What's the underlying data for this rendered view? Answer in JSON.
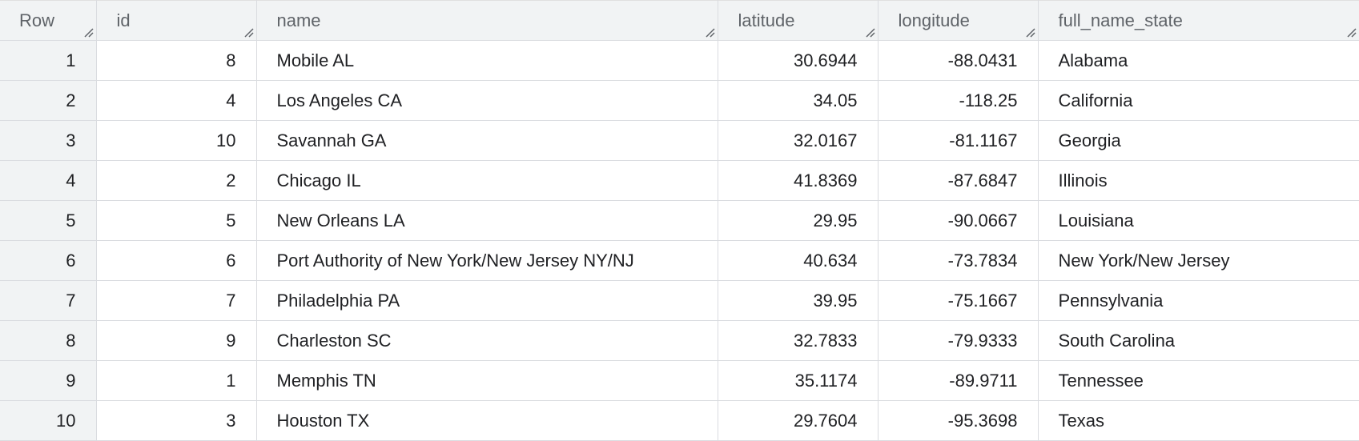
{
  "table": {
    "columns": [
      {
        "key": "row",
        "label": "Row"
      },
      {
        "key": "id",
        "label": "id"
      },
      {
        "key": "name",
        "label": "name"
      },
      {
        "key": "latitude",
        "label": "latitude"
      },
      {
        "key": "longitude",
        "label": "longitude"
      },
      {
        "key": "full_name_state",
        "label": "full_name_state"
      }
    ],
    "rows": [
      {
        "row": "1",
        "id": "8",
        "name": "Mobile AL",
        "latitude": "30.6944",
        "longitude": "-88.0431",
        "full_name_state": "Alabama"
      },
      {
        "row": "2",
        "id": "4",
        "name": "Los Angeles CA",
        "latitude": "34.05",
        "longitude": "-118.25",
        "full_name_state": "California"
      },
      {
        "row": "3",
        "id": "10",
        "name": "Savannah GA",
        "latitude": "32.0167",
        "longitude": "-81.1167",
        "full_name_state": "Georgia"
      },
      {
        "row": "4",
        "id": "2",
        "name": "Chicago IL",
        "latitude": "41.8369",
        "longitude": "-87.6847",
        "full_name_state": "Illinois"
      },
      {
        "row": "5",
        "id": "5",
        "name": "New Orleans LA",
        "latitude": "29.95",
        "longitude": "-90.0667",
        "full_name_state": "Louisiana"
      },
      {
        "row": "6",
        "id": "6",
        "name": "Port Authority of New York/New Jersey NY/NJ",
        "latitude": "40.634",
        "longitude": "-73.7834",
        "full_name_state": "New York/New Jersey"
      },
      {
        "row": "7",
        "id": "7",
        "name": "Philadelphia PA",
        "latitude": "39.95",
        "longitude": "-75.1667",
        "full_name_state": "Pennsylvania"
      },
      {
        "row": "8",
        "id": "9",
        "name": "Charleston SC",
        "latitude": "32.7833",
        "longitude": "-79.9333",
        "full_name_state": "South Carolina"
      },
      {
        "row": "9",
        "id": "1",
        "name": "Memphis TN",
        "latitude": "35.1174",
        "longitude": "-89.9711",
        "full_name_state": "Tennessee"
      },
      {
        "row": "10",
        "id": "3",
        "name": "Houston TX",
        "latitude": "29.7604",
        "longitude": "-95.3698",
        "full_name_state": "Texas"
      }
    ]
  },
  "icons": {
    "column_resize": "resize-handle-icon"
  },
  "colors": {
    "header_bg": "#f1f3f4",
    "header_text": "#5f6368",
    "grid_line": "#dadce0",
    "cell_text": "#202124"
  }
}
